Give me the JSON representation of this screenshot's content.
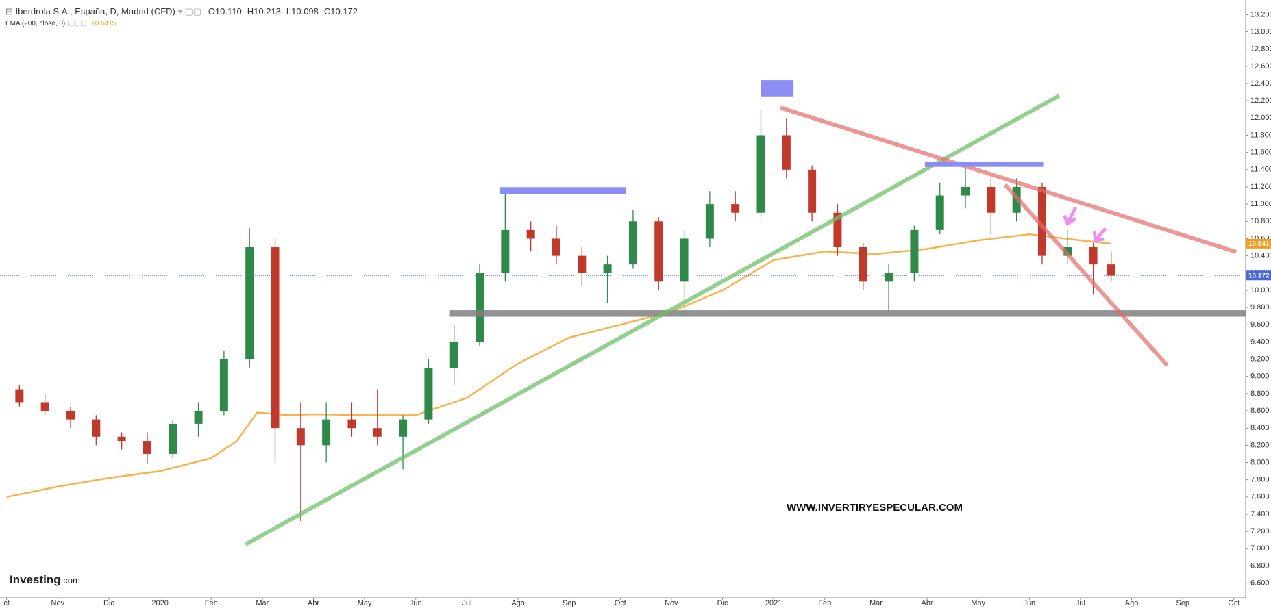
{
  "header": {
    "title": "Iberdrola S.A., España, D, Madrid (CFD)",
    "ohlc": [
      "O10.110",
      "H10.213",
      "L10.098",
      "C10.172"
    ],
    "indicator": "EMA (200, close, 0)",
    "indicator_value": "10.5415"
  },
  "watermark": "WWW.INVERTIRYESPECULAR.COM",
  "logo": {
    "brand": "Investing",
    "suffix": ".com"
  },
  "chart_data": {
    "type": "candlestick",
    "xlim": [
      -0.13,
      24.23
    ],
    "xticks": [
      {
        "value": 0,
        "label": "ct"
      },
      {
        "value": 1,
        "label": "Nov"
      },
      {
        "value": 2,
        "label": "Dic"
      },
      {
        "value": 3,
        "label": "2020"
      },
      {
        "value": 4,
        "label": "Feb"
      },
      {
        "value": 5,
        "label": "Mar"
      },
      {
        "value": 6,
        "label": "Abr"
      },
      {
        "value": 7,
        "label": "May"
      },
      {
        "value": 8,
        "label": "Jun"
      },
      {
        "value": 9,
        "label": "Jul"
      },
      {
        "value": 10,
        "label": "Ago"
      },
      {
        "value": 11,
        "label": "Sep"
      },
      {
        "value": 12,
        "label": "Oct"
      },
      {
        "value": 13,
        "label": "Nov"
      },
      {
        "value": 14,
        "label": "Dic"
      },
      {
        "value": 15,
        "label": "2021"
      },
      {
        "value": 16,
        "label": "Feb"
      },
      {
        "value": 17,
        "label": "Mar"
      },
      {
        "value": 18,
        "label": "Abr"
      },
      {
        "value": 19,
        "label": "May"
      },
      {
        "value": 20,
        "label": "Jun"
      },
      {
        "value": 21,
        "label": "Jul"
      },
      {
        "value": 22,
        "label": "Ago"
      },
      {
        "value": 23,
        "label": "Sep"
      },
      {
        "value": 24,
        "label": "Oct"
      }
    ],
    "ylim": [
      6.43,
      13.37
    ],
    "yticks": [
      {
        "value": 6.6,
        "label": "6.600"
      },
      {
        "value": 6.8,
        "label": "6.800"
      },
      {
        "value": 7.0,
        "label": "7.000"
      },
      {
        "value": 7.2,
        "label": "7.200"
      },
      {
        "value": 7.4,
        "label": "7.400"
      },
      {
        "value": 7.6,
        "label": "7.600"
      },
      {
        "value": 7.8,
        "label": "7.800"
      },
      {
        "value": 8.0,
        "label": "8.000"
      },
      {
        "value": 8.2,
        "label": "8.200"
      },
      {
        "value": 8.4,
        "label": "8.400"
      },
      {
        "value": 8.6,
        "label": "8.600"
      },
      {
        "value": 8.8,
        "label": "8.800"
      },
      {
        "value": 9.0,
        "label": "9.000"
      },
      {
        "value": 9.2,
        "label": "9.200"
      },
      {
        "value": 9.4,
        "label": "9.400"
      },
      {
        "value": 9.6,
        "label": "9.600"
      },
      {
        "value": 9.8,
        "label": "9.800"
      },
      {
        "value": 10.0,
        "label": "10.000"
      },
      {
        "value": 10.2,
        "label": "10.200"
      },
      {
        "value": 10.4,
        "label": "10.400"
      },
      {
        "value": 10.6,
        "label": "10.600"
      },
      {
        "value": 10.8,
        "label": "10.800"
      },
      {
        "value": 11.0,
        "label": "11.000"
      },
      {
        "value": 11.2,
        "label": "11.200"
      },
      {
        "value": 11.4,
        "label": "11.400"
      },
      {
        "value": 11.6,
        "label": "11.600"
      },
      {
        "value": 11.8,
        "label": "11.800"
      },
      {
        "value": 12.0,
        "label": "12.000"
      },
      {
        "value": 12.2,
        "label": "12.200"
      },
      {
        "value": 12.4,
        "label": "12.400"
      },
      {
        "value": 12.6,
        "label": "12.600"
      },
      {
        "value": 12.8,
        "label": "12.800"
      },
      {
        "value": 13.0,
        "label": "13.000"
      },
      {
        "value": 13.2,
        "label": "13.200"
      }
    ],
    "grid": false,
    "up_color": "#2f8a4a",
    "down_color": "#c0392b",
    "x": [
      0.25,
      0.75,
      1.25,
      1.75,
      2.25,
      2.75,
      3.25,
      3.75,
      4.25,
      4.75,
      5.25,
      5.75,
      6.25,
      6.75,
      7.25,
      7.75,
      8.25,
      8.75,
      9.25,
      9.75,
      10.25,
      10.75,
      11.25,
      11.75,
      12.25,
      12.75,
      13.25,
      13.75,
      14.25,
      14.75,
      15.25,
      15.75,
      16.25,
      16.75,
      17.25,
      17.75,
      18.25,
      18.75,
      19.25,
      19.75,
      20.25,
      20.75,
      21.25,
      21.6
    ],
    "open": [
      8.85,
      8.7,
      8.6,
      8.5,
      8.3,
      8.25,
      8.1,
      8.45,
      8.6,
      9.2,
      10.5,
      8.4,
      8.2,
      8.5,
      8.4,
      8.3,
      8.5,
      9.1,
      9.4,
      10.2,
      10.7,
      10.6,
      10.4,
      10.2,
      10.3,
      10.8,
      10.1,
      10.6,
      11.0,
      10.9,
      11.8,
      11.4,
      10.9,
      10.5,
      10.1,
      10.2,
      10.7,
      11.1,
      11.2,
      10.9,
      11.2,
      10.4,
      10.5,
      10.3
    ],
    "high": [
      8.9,
      8.8,
      8.65,
      8.55,
      8.35,
      8.35,
      8.5,
      8.7,
      9.3,
      10.72,
      10.6,
      8.7,
      8.7,
      8.7,
      8.85,
      8.55,
      9.2,
      9.6,
      10.3,
      11.12,
      10.8,
      10.75,
      10.5,
      10.4,
      10.93,
      10.85,
      10.7,
      11.15,
      11.15,
      12.1,
      12.0,
      11.45,
      11.0,
      10.55,
      10.3,
      10.75,
      11.25,
      11.42,
      11.3,
      11.3,
      11.25,
      10.7,
      10.55,
      10.45
    ],
    "low": [
      8.65,
      8.55,
      8.4,
      8.2,
      8.15,
      7.98,
      8.05,
      8.3,
      8.55,
      9.1,
      8.0,
      7.32,
      8.0,
      8.3,
      8.2,
      7.92,
      8.45,
      8.9,
      9.35,
      10.1,
      10.45,
      10.3,
      10.05,
      9.85,
      10.25,
      10.0,
      9.72,
      10.5,
      10.8,
      10.85,
      11.3,
      10.8,
      10.4,
      10.0,
      9.75,
      10.1,
      10.65,
      10.95,
      10.65,
      10.8,
      10.3,
      10.3,
      9.95,
      10.1
    ],
    "close": [
      8.7,
      8.6,
      8.5,
      8.3,
      8.25,
      8.1,
      8.45,
      8.6,
      9.2,
      10.5,
      8.4,
      8.2,
      8.5,
      8.4,
      8.3,
      8.5,
      9.1,
      9.4,
      10.2,
      10.7,
      10.6,
      10.4,
      10.2,
      10.3,
      10.8,
      10.1,
      10.6,
      11.0,
      10.9,
      11.8,
      11.4,
      10.9,
      10.5,
      10.1,
      10.2,
      10.7,
      11.1,
      11.2,
      10.9,
      11.2,
      10.4,
      10.5,
      10.3,
      10.17
    ],
    "ema": {
      "color": "#f7b24a",
      "x": [
        0,
        1,
        2,
        3,
        4,
        4.5,
        4.9,
        5.5,
        6,
        7,
        8,
        9,
        10,
        11,
        12,
        13,
        14,
        15,
        16,
        17,
        18,
        19,
        20,
        21,
        21.6
      ],
      "values": [
        7.6,
        7.72,
        7.82,
        7.9,
        8.05,
        8.25,
        8.58,
        8.55,
        8.56,
        8.55,
        8.55,
        8.75,
        9.15,
        9.45,
        9.6,
        9.75,
        10.0,
        10.35,
        10.45,
        10.42,
        10.48,
        10.58,
        10.65,
        10.58,
        10.54
      ]
    },
    "ema_tag": {
      "value": 10.541,
      "label": "10.541",
      "color": "#f29d1e"
    },
    "last_price": {
      "value": 10.172,
      "label": "10.172",
      "color": "#4a68d8"
    }
  }
}
